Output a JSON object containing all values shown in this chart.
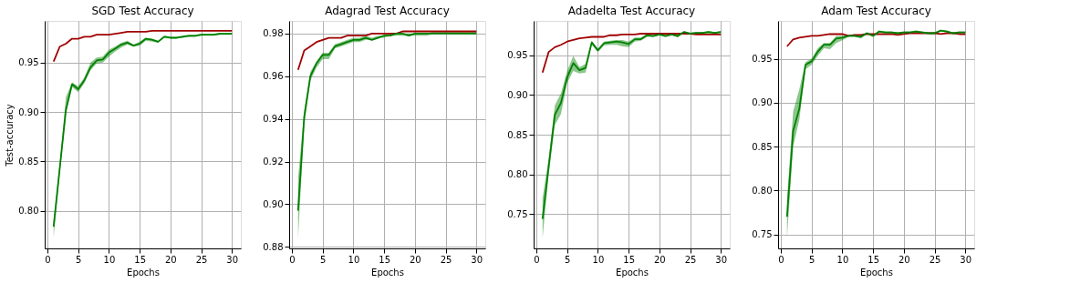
{
  "chart_data": [
    {
      "type": "line",
      "title": "SGD Test Accuracy",
      "xlabel": "Epochs",
      "ylabel": "Test-accuracy",
      "x": [
        1,
        2,
        3,
        4,
        5,
        6,
        7,
        8,
        9,
        10,
        11,
        12,
        13,
        14,
        15,
        16,
        17,
        18,
        19,
        20,
        21,
        22,
        23,
        24,
        25,
        26,
        27,
        28,
        29,
        30
      ],
      "xlim": [
        -0.45,
        31.45
      ],
      "xticks": [
        0,
        5,
        10,
        15,
        20,
        25,
        30
      ],
      "ylim": [
        0.762,
        0.992
      ],
      "yticks": [
        {
          "value": 0.8,
          "label": "0.80"
        },
        {
          "value": 0.85,
          "label": "0.85"
        },
        {
          "value": 0.9,
          "label": "0.90"
        },
        {
          "value": 0.95,
          "label": "0.95"
        }
      ],
      "grid": true,
      "line_style": "solid",
      "series": [
        {
          "color": "#a00000",
          "values": [
            0.951,
            0.966,
            0.969,
            0.974,
            0.974,
            0.976,
            0.976,
            0.978,
            0.978,
            0.978,
            0.979,
            0.98,
            0.981,
            0.981,
            0.981,
            0.981,
            0.982,
            0.982,
            0.982,
            0.982,
            0.982,
            0.982,
            0.982,
            0.982,
            0.982,
            0.982,
            0.982,
            0.982,
            0.982,
            0.982
          ]
        },
        {
          "color": "#008000",
          "values": [
            0.784,
            0.843,
            0.902,
            0.928,
            0.923,
            0.932,
            0.945,
            0.952,
            0.953,
            0.96,
            0.964,
            0.968,
            0.97,
            0.967,
            0.969,
            0.974,
            0.973,
            0.971,
            0.976,
            0.975,
            0.975,
            0.976,
            0.977,
            0.977,
            0.978,
            0.978,
            0.978,
            0.979,
            0.979,
            0.979
          ],
          "lower": [
            0.773,
            0.838,
            0.898,
            0.925,
            0.92,
            0.929,
            0.942,
            0.949,
            0.95,
            0.956,
            0.961,
            0.965,
            0.968,
            0.966,
            0.967,
            0.972,
            0.971,
            0.97,
            0.975,
            0.974,
            0.974,
            0.975,
            0.976,
            0.976,
            0.977,
            0.977,
            0.977,
            0.978,
            0.978,
            0.978
          ],
          "upper": [
            0.79,
            0.848,
            0.915,
            0.93,
            0.926,
            0.935,
            0.95,
            0.955,
            0.956,
            0.963,
            0.966,
            0.97,
            0.972,
            0.968,
            0.971,
            0.975,
            0.974,
            0.972,
            0.977,
            0.976,
            0.976,
            0.977,
            0.978,
            0.978,
            0.979,
            0.979,
            0.979,
            0.98,
            0.98,
            0.98
          ]
        }
      ]
    },
    {
      "type": "line",
      "title": "Adagrad Test Accuracy",
      "xlabel": "Epochs",
      "x": [
        1,
        2,
        3,
        4,
        5,
        6,
        7,
        8,
        9,
        10,
        11,
        12,
        13,
        14,
        15,
        16,
        17,
        18,
        19,
        20,
        21,
        22,
        23,
        24,
        25,
        26,
        27,
        28,
        29,
        30
      ],
      "xlim": [
        -0.45,
        31.45
      ],
      "xticks": [
        0,
        5,
        10,
        15,
        20,
        25,
        30
      ],
      "ylim": [
        0.8793,
        0.9859
      ],
      "yticks": [
        {
          "value": 0.88,
          "label": "0.88"
        },
        {
          "value": 0.9,
          "label": "0.90"
        },
        {
          "value": 0.92,
          "label": "0.92"
        },
        {
          "value": 0.94,
          "label": "0.94"
        },
        {
          "value": 0.96,
          "label": "0.96"
        },
        {
          "value": 0.98,
          "label": "0.98"
        }
      ],
      "grid": true,
      "line_style": "solid",
      "series": [
        {
          "color": "#a00000",
          "values": [
            0.963,
            0.972,
            0.974,
            0.976,
            0.977,
            0.978,
            0.978,
            0.978,
            0.979,
            0.979,
            0.979,
            0.979,
            0.98,
            0.98,
            0.98,
            0.98,
            0.98,
            0.981,
            0.981,
            0.981,
            0.981,
            0.981,
            0.981,
            0.981,
            0.981,
            0.981,
            0.981,
            0.981,
            0.981,
            0.981
          ]
        },
        {
          "color": "#008000",
          "values": [
            0.897,
            0.941,
            0.96,
            0.966,
            0.97,
            0.97,
            0.974,
            0.975,
            0.976,
            0.977,
            0.977,
            0.978,
            0.977,
            0.978,
            0.979,
            0.979,
            0.98,
            0.98,
            0.979,
            0.98,
            0.98,
            0.98,
            0.98,
            0.98,
            0.98,
            0.98,
            0.98,
            0.98,
            0.98,
            0.98
          ],
          "lower": [
            0.884,
            0.937,
            0.958,
            0.964,
            0.968,
            0.968,
            0.973,
            0.974,
            0.975,
            0.976,
            0.976,
            0.977,
            0.977,
            0.978,
            0.978,
            0.979,
            0.979,
            0.979,
            0.979,
            0.979,
            0.979,
            0.979,
            0.98,
            0.98,
            0.98,
            0.98,
            0.98,
            0.98,
            0.98,
            0.98
          ],
          "upper": [
            0.912,
            0.944,
            0.962,
            0.967,
            0.971,
            0.971,
            0.975,
            0.976,
            0.977,
            0.978,
            0.978,
            0.979,
            0.978,
            0.979,
            0.979,
            0.98,
            0.98,
            0.98,
            0.98,
            0.98,
            0.98,
            0.98,
            0.981,
            0.981,
            0.981,
            0.981,
            0.981,
            0.981,
            0.981,
            0.981
          ]
        }
      ]
    },
    {
      "type": "line",
      "title": "Adadelta Test Accuracy",
      "xlabel": "Epochs",
      "x": [
        1,
        2,
        3,
        4,
        5,
        6,
        7,
        8,
        9,
        10,
        11,
        12,
        13,
        14,
        15,
        16,
        17,
        18,
        19,
        20,
        21,
        22,
        23,
        24,
        25,
        26,
        27,
        28,
        29,
        30
      ],
      "xlim": [
        -0.45,
        31.45
      ],
      "xticks": [
        0,
        5,
        10,
        15,
        20,
        25,
        30
      ],
      "ylim": [
        0.707,
        0.993
      ],
      "yticks": [
        {
          "value": 0.75,
          "label": "0.75"
        },
        {
          "value": 0.8,
          "label": "0.80"
        },
        {
          "value": 0.85,
          "label": "0.85"
        },
        {
          "value": 0.9,
          "label": "0.90"
        },
        {
          "value": 0.95,
          "label": "0.95"
        }
      ],
      "grid": true,
      "line_style": "solid",
      "series": [
        {
          "color": "#a00000",
          "values": [
            0.928,
            0.954,
            0.96,
            0.963,
            0.967,
            0.969,
            0.971,
            0.972,
            0.973,
            0.973,
            0.973,
            0.975,
            0.975,
            0.976,
            0.976,
            0.976,
            0.977,
            0.977,
            0.977,
            0.977,
            0.977,
            0.977,
            0.977,
            0.977,
            0.977,
            0.976,
            0.976,
            0.976,
            0.976,
            0.976
          ]
        },
        {
          "color": "#008000",
          "values": [
            0.744,
            0.81,
            0.875,
            0.89,
            0.922,
            0.94,
            0.931,
            0.934,
            0.966,
            0.956,
            0.965,
            0.966,
            0.967,
            0.966,
            0.964,
            0.97,
            0.97,
            0.975,
            0.974,
            0.976,
            0.974,
            0.976,
            0.974,
            0.979,
            0.977,
            0.978,
            0.978,
            0.979,
            0.978,
            0.979
          ],
          "lower": [
            0.72,
            0.8,
            0.862,
            0.876,
            0.915,
            0.93,
            0.927,
            0.928,
            0.963,
            0.954,
            0.962,
            0.963,
            0.963,
            0.961,
            0.96,
            0.967,
            0.968,
            0.973,
            0.973,
            0.975,
            0.973,
            0.975,
            0.972,
            0.978,
            0.976,
            0.977,
            0.977,
            0.978,
            0.977,
            0.978
          ],
          "upper": [
            0.77,
            0.82,
            0.887,
            0.902,
            0.93,
            0.949,
            0.935,
            0.939,
            0.968,
            0.958,
            0.967,
            0.968,
            0.969,
            0.969,
            0.967,
            0.972,
            0.972,
            0.977,
            0.976,
            0.977,
            0.976,
            0.977,
            0.976,
            0.98,
            0.978,
            0.979,
            0.979,
            0.98,
            0.979,
            0.98
          ]
        }
      ]
    },
    {
      "type": "line",
      "title": "Adam Test Accuracy",
      "xlabel": "Epochs",
      "x": [
        1,
        2,
        3,
        4,
        5,
        6,
        7,
        8,
        9,
        10,
        11,
        12,
        13,
        14,
        15,
        16,
        17,
        18,
        19,
        20,
        21,
        22,
        23,
        24,
        25,
        26,
        27,
        28,
        29,
        30
      ],
      "xlim": [
        -0.45,
        31.45
      ],
      "xticks": [
        0,
        5,
        10,
        15,
        20,
        25,
        30
      ],
      "ylim": [
        0.734,
        0.993
      ],
      "yticks": [
        {
          "value": 0.75,
          "label": "0.75"
        },
        {
          "value": 0.8,
          "label": "0.80"
        },
        {
          "value": 0.85,
          "label": "0.85"
        },
        {
          "value": 0.9,
          "label": "0.90"
        },
        {
          "value": 0.95,
          "label": "0.95"
        }
      ],
      "grid": true,
      "line_style": "solid",
      "series": [
        {
          "color": "#a00000",
          "values": [
            0.964,
            0.972,
            0.974,
            0.975,
            0.976,
            0.976,
            0.977,
            0.978,
            0.978,
            0.978,
            0.976,
            0.977,
            0.977,
            0.978,
            0.978,
            0.978,
            0.978,
            0.978,
            0.977,
            0.978,
            0.979,
            0.979,
            0.979,
            0.979,
            0.979,
            0.978,
            0.979,
            0.979,
            0.978,
            0.978
          ]
        },
        {
          "color": "#008000",
          "values": [
            0.77,
            0.868,
            0.893,
            0.943,
            0.947,
            0.958,
            0.966,
            0.966,
            0.973,
            0.974,
            0.976,
            0.976,
            0.975,
            0.979,
            0.976,
            0.981,
            0.98,
            0.98,
            0.979,
            0.98,
            0.98,
            0.981,
            0.98,
            0.979,
            0.979,
            0.982,
            0.981,
            0.979,
            0.98,
            0.98
          ],
          "lower": [
            0.746,
            0.85,
            0.88,
            0.938,
            0.943,
            0.953,
            0.962,
            0.961,
            0.968,
            0.971,
            0.975,
            0.975,
            0.973,
            0.978,
            0.975,
            0.98,
            0.979,
            0.979,
            0.978,
            0.979,
            0.979,
            0.98,
            0.979,
            0.978,
            0.978,
            0.981,
            0.98,
            0.978,
            0.979,
            0.979
          ],
          "upper": [
            0.79,
            0.89,
            0.915,
            0.946,
            0.95,
            0.962,
            0.968,
            0.968,
            0.976,
            0.976,
            0.977,
            0.977,
            0.977,
            0.98,
            0.977,
            0.982,
            0.981,
            0.981,
            0.98,
            0.981,
            0.981,
            0.982,
            0.981,
            0.98,
            0.98,
            0.983,
            0.982,
            0.98,
            0.981,
            0.981
          ]
        }
      ]
    }
  ]
}
